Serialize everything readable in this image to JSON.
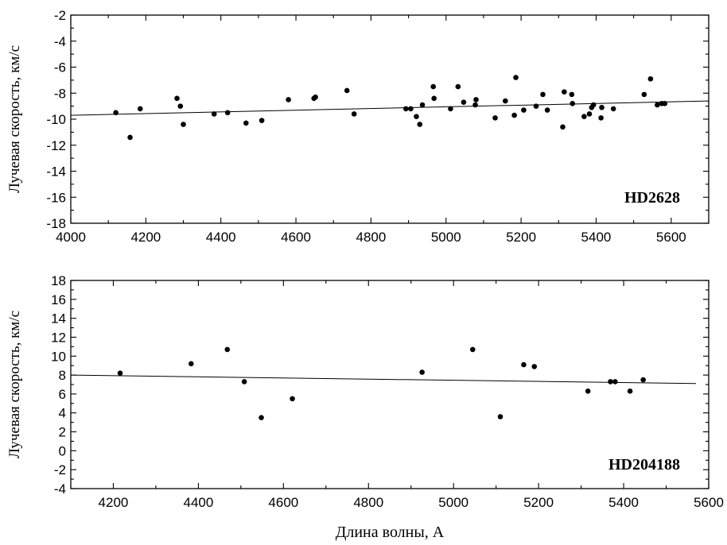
{
  "chart_data": [
    {
      "type": "scatter",
      "annotation": "HD2628",
      "ylabel": "Лучевая скорость, км/с",
      "xlabel": "",
      "xlim": [
        4000,
        5700
      ],
      "ylim": [
        -18,
        -2
      ],
      "xticks": [
        4000,
        4200,
        4400,
        4600,
        4800,
        5000,
        5200,
        5400,
        5600
      ],
      "xtick_labels": [
        "4000",
        "4200",
        "4400",
        "4600",
        "4800",
        "5000",
        "5200",
        "5400",
        "5600"
      ],
      "yticks": [
        -18,
        -16,
        -14,
        -12,
        -10,
        -8,
        -6,
        -4,
        -2
      ],
      "ytick_labels": [
        "-18",
        "-16",
        "-14",
        "-12",
        "-10",
        "-8",
        "-6",
        "-4",
        "-2"
      ],
      "x_minor_step": 100,
      "y_minor_step": 1,
      "points": [
        [
          4120,
          -9.5
        ],
        [
          4158,
          -11.4
        ],
        [
          4185,
          -9.2
        ],
        [
          4283,
          -8.4
        ],
        [
          4292,
          -9.0
        ],
        [
          4300,
          -10.4
        ],
        [
          4382,
          -9.6
        ],
        [
          4418,
          -9.5
        ],
        [
          4467,
          -10.3
        ],
        [
          4509,
          -10.1
        ],
        [
          4580,
          -8.5
        ],
        [
          4648,
          -8.4
        ],
        [
          4652,
          -8.3
        ],
        [
          4736,
          -7.8
        ],
        [
          4755,
          -9.6
        ],
        [
          4893,
          -9.2
        ],
        [
          4906,
          -9.2
        ],
        [
          4921,
          -9.8
        ],
        [
          4930,
          -10.4
        ],
        [
          4937,
          -8.9
        ],
        [
          4966,
          -7.5
        ],
        [
          4968,
          -8.4
        ],
        [
          5012,
          -9.2
        ],
        [
          5032,
          -7.5
        ],
        [
          5047,
          -8.7
        ],
        [
          5078,
          -8.9
        ],
        [
          5080,
          -8.5
        ],
        [
          5131,
          -9.9
        ],
        [
          5158,
          -8.6
        ],
        [
          5182,
          -9.7
        ],
        [
          5186,
          -6.8
        ],
        [
          5207,
          -9.3
        ],
        [
          5240,
          -9.0
        ],
        [
          5258,
          -8.1
        ],
        [
          5270,
          -9.3
        ],
        [
          5311,
          -10.6
        ],
        [
          5315,
          -7.9
        ],
        [
          5335,
          -8.1
        ],
        [
          5337,
          -8.8
        ],
        [
          5368,
          -9.8
        ],
        [
          5382,
          -9.6
        ],
        [
          5388,
          -9.1
        ],
        [
          5393,
          -8.9
        ],
        [
          5413,
          -9.9
        ],
        [
          5415,
          -9.1
        ],
        [
          5446,
          -9.2
        ],
        [
          5528,
          -8.1
        ],
        [
          5545,
          -6.9
        ],
        [
          5563,
          -8.9
        ],
        [
          5575,
          -8.8
        ],
        [
          5583,
          -8.8
        ]
      ],
      "fit_line": [
        [
          4000,
          -9.7
        ],
        [
          5700,
          -8.6
        ]
      ]
    },
    {
      "type": "scatter",
      "annotation": "HD204188",
      "ylabel": "Лучевая скорость, км/с",
      "xlabel": "Длина волны, А",
      "xlim": [
        4100,
        5600
      ],
      "ylim": [
        -4,
        18
      ],
      "xticks": [
        4200,
        4400,
        4600,
        4800,
        5000,
        5200,
        5400,
        5600
      ],
      "xtick_labels": [
        "4200",
        "4400",
        "4600",
        "4800",
        "5000",
        "5200",
        "5400",
        "5600"
      ],
      "yticks": [
        -4,
        -2,
        0,
        2,
        4,
        6,
        8,
        10,
        12,
        14,
        16,
        18
      ],
      "ytick_labels": [
        "-4",
        "-2",
        "0",
        "2",
        "4",
        "6",
        "8",
        "10",
        "12",
        "14",
        "16",
        "18"
      ],
      "x_minor_step": 100,
      "y_minor_step": 1,
      "points": [
        [
          4216,
          8.2
        ],
        [
          4383,
          9.2
        ],
        [
          4468,
          10.7
        ],
        [
          4508,
          7.3
        ],
        [
          4548,
          3.5
        ],
        [
          4621,
          5.5
        ],
        [
          4926,
          8.3
        ],
        [
          5045,
          10.7
        ],
        [
          5110,
          3.6
        ],
        [
          5165,
          9.1
        ],
        [
          5190,
          8.9
        ],
        [
          5316,
          6.3
        ],
        [
          5369,
          7.3
        ],
        [
          5380,
          7.3
        ],
        [
          5415,
          6.3
        ],
        [
          5446,
          7.5
        ]
      ],
      "fit_line": [
        [
          4100,
          8.0
        ],
        [
          5570,
          7.1
        ]
      ]
    }
  ]
}
